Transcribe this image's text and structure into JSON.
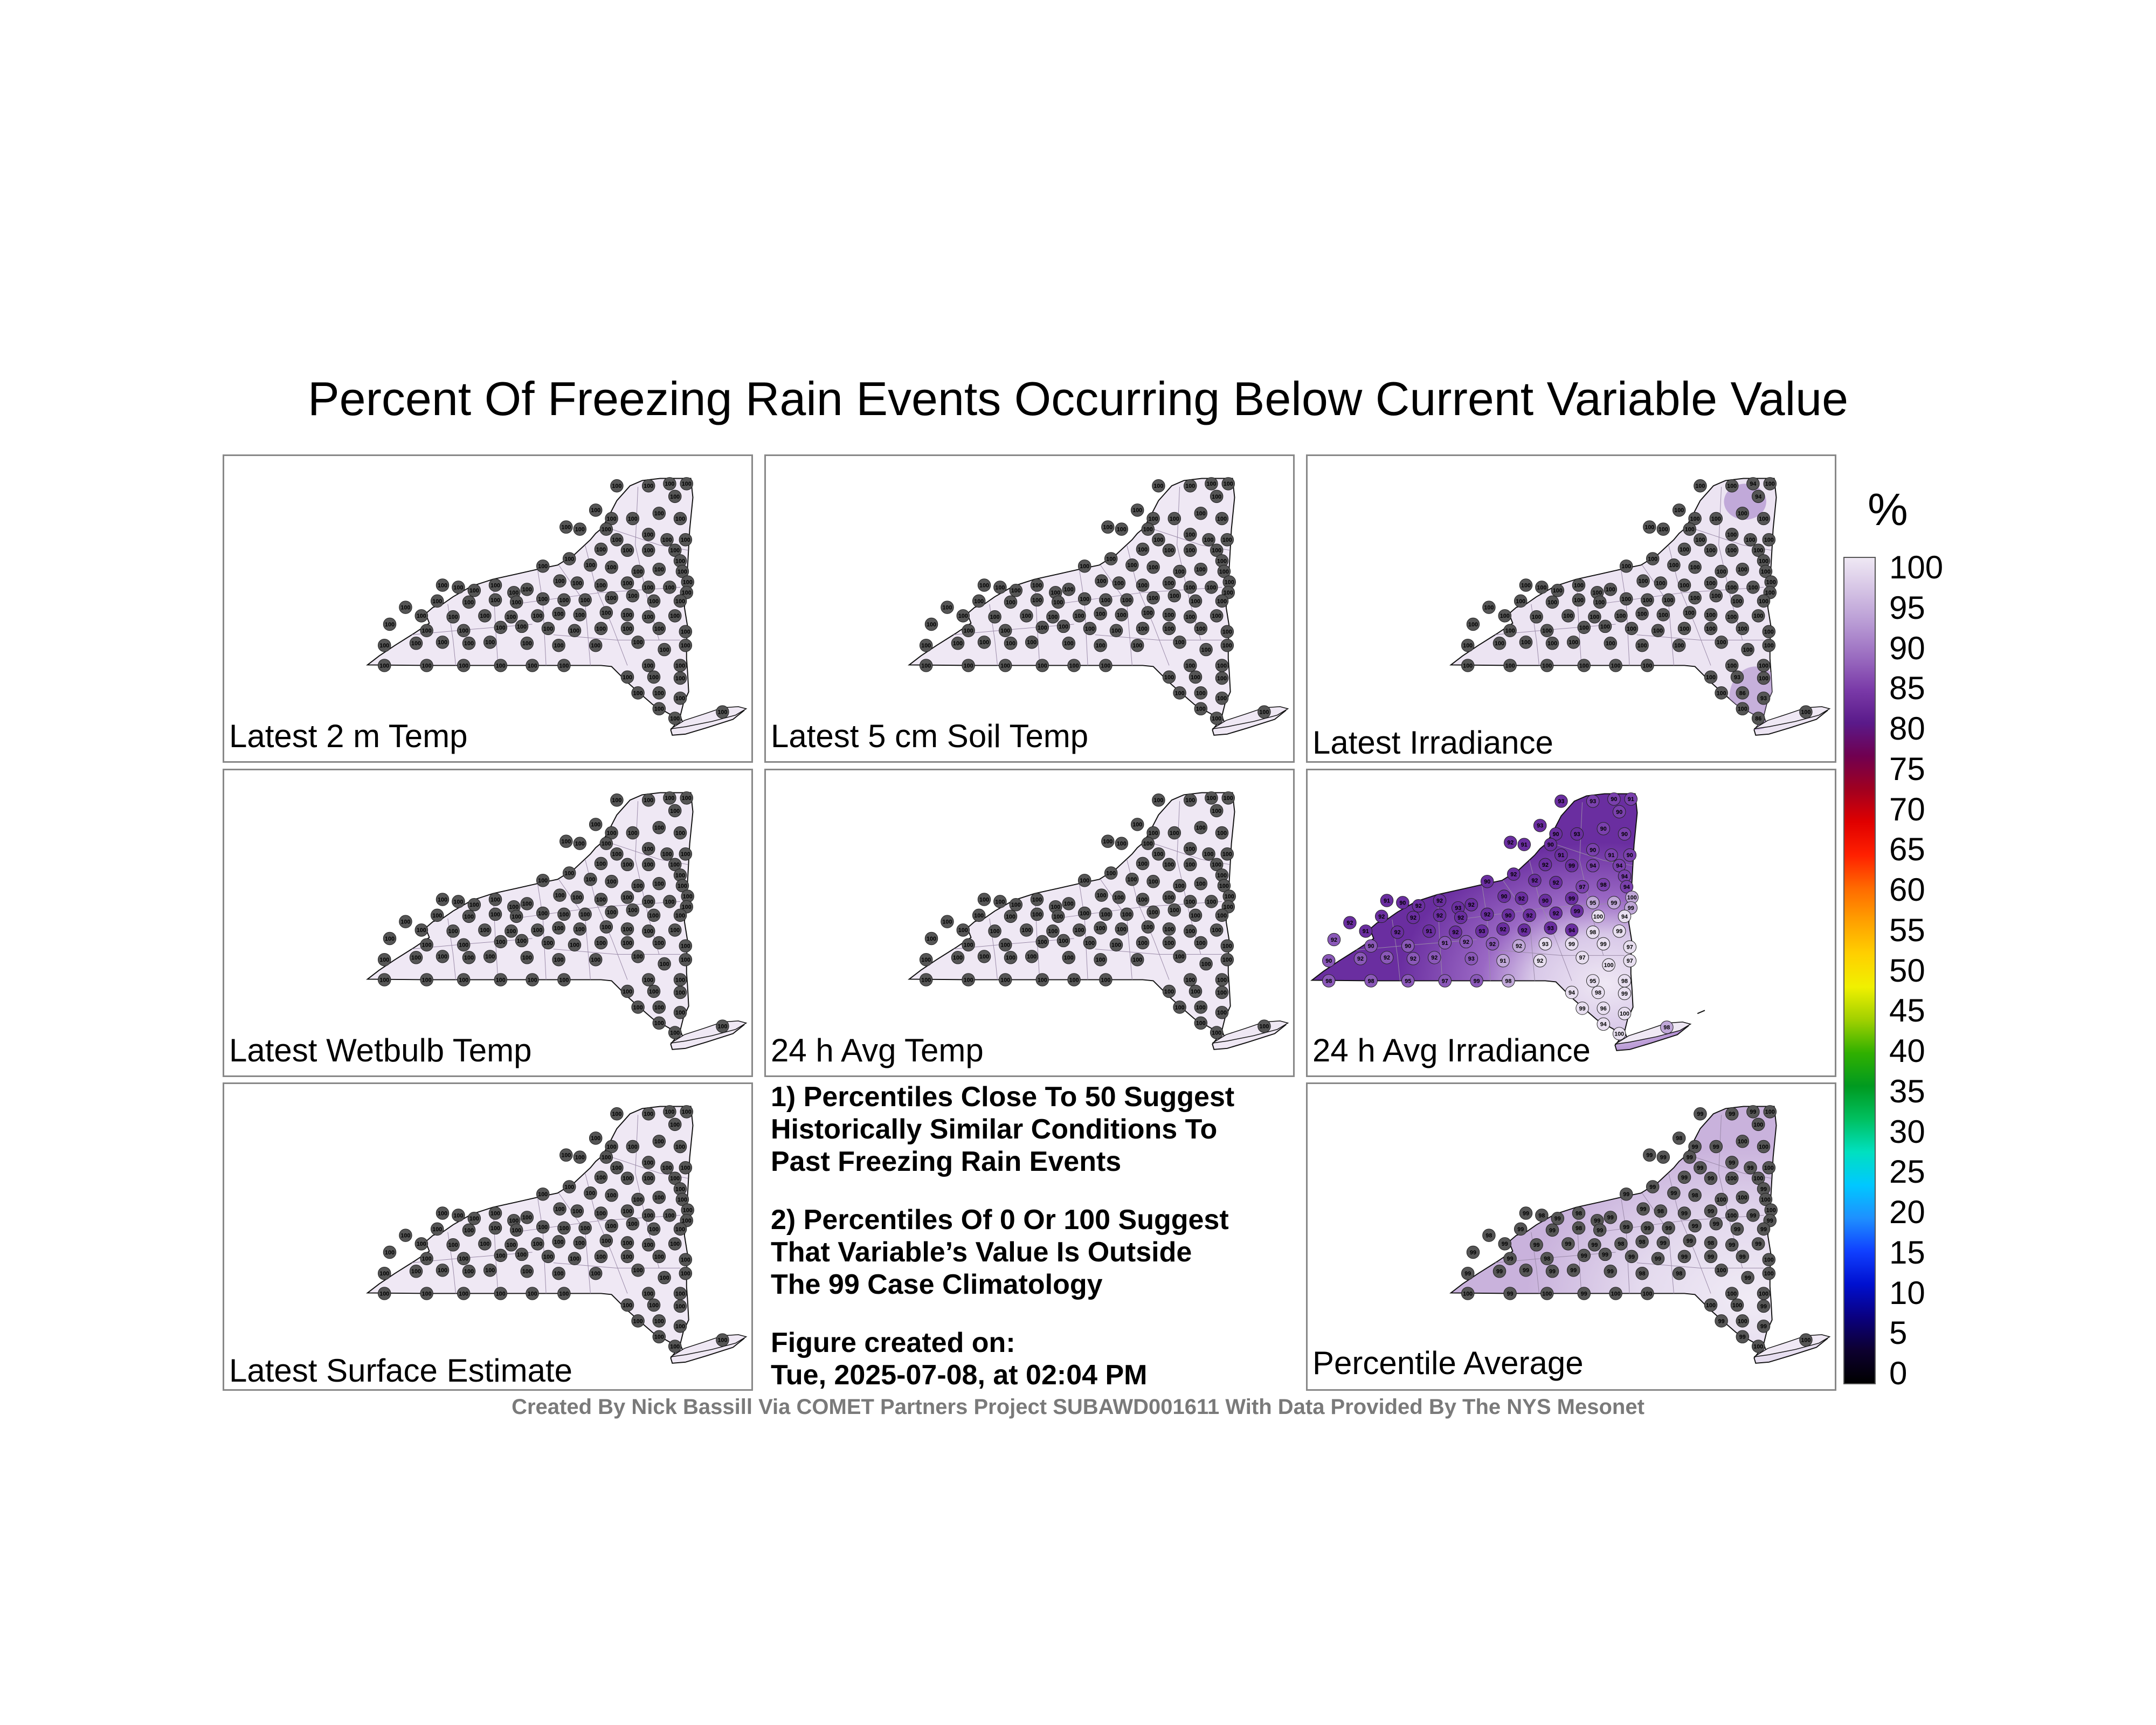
{
  "title": "Percent Of Freezing Rain Events Occurring Below Current Variable Value",
  "panels": [
    {
      "label": "Latest 2 m Temp",
      "style": "uniform",
      "station_value": "100"
    },
    {
      "label": "Latest 5 cm Soil Temp",
      "style": "uniform",
      "station_value": "100"
    },
    {
      "label": "Latest Irradiance",
      "style": "irradiance",
      "station_value": "100",
      "extra_values": [
        "94",
        "93",
        "89",
        "86"
      ]
    },
    {
      "label": "Latest Wetbulb Temp",
      "style": "uniform",
      "station_value": "100"
    },
    {
      "label": "24 h Avg Temp",
      "style": "uniform",
      "station_value": "100"
    },
    {
      "label": "24 h Avg Irradiance",
      "style": "avgirr",
      "station_value": "92",
      "extra_values": [
        "93",
        "91",
        "90",
        "94",
        "95",
        "96",
        "97",
        "98",
        "99",
        "100"
      ]
    },
    {
      "label": "Latest Surface Estimate",
      "style": "uniform",
      "station_value": "100"
    },
    {
      "label": "Percentile Average",
      "style": "average",
      "station_value": "99",
      "extra_values": [
        "98",
        "100"
      ]
    }
  ],
  "notes": {
    "note1": [
      "1) Percentiles Close To 50 Suggest",
      "Historically Similar Conditions To",
      "Past Freezing Rain Events"
    ],
    "note2": [
      "2) Percentiles Of 0 Or 100 Suggest",
      "That Variable’s Value Is Outside",
      "The 99 Case Climatology"
    ],
    "created_label": "Figure created on:",
    "created_value": "Tue, 2025-07-08, at 02:04 PM"
  },
  "colorbar": {
    "unit": "%",
    "ticks": [
      "100",
      "95",
      "90",
      "85",
      "80",
      "75",
      "70",
      "65",
      "60",
      "55",
      "50",
      "45",
      "40",
      "35",
      "30",
      "25",
      "20",
      "15",
      "10",
      "5",
      "0"
    ],
    "colors": [
      "#000000",
      "#0d0030",
      "#0a0080",
      "#0010d0",
      "#1040ff",
      "#1e90ff",
      "#00c8ff",
      "#00e0c0",
      "#00c060",
      "#009a20",
      "#30b000",
      "#a0d000",
      "#f0f000",
      "#ffd000",
      "#ffa000",
      "#ff6a00",
      "#ff2000",
      "#e00000",
      "#a00020",
      "#700050",
      "#5a1a8a",
      "#7a3aa8",
      "#9a6cc0",
      "#b89ad4",
      "#d4c2e4",
      "#efe8f4"
    ]
  },
  "credit": "Created By Nick Bassill Via COMET Partners Project SUBAWD001611 With Data Provided By The NYS Mesonet"
}
